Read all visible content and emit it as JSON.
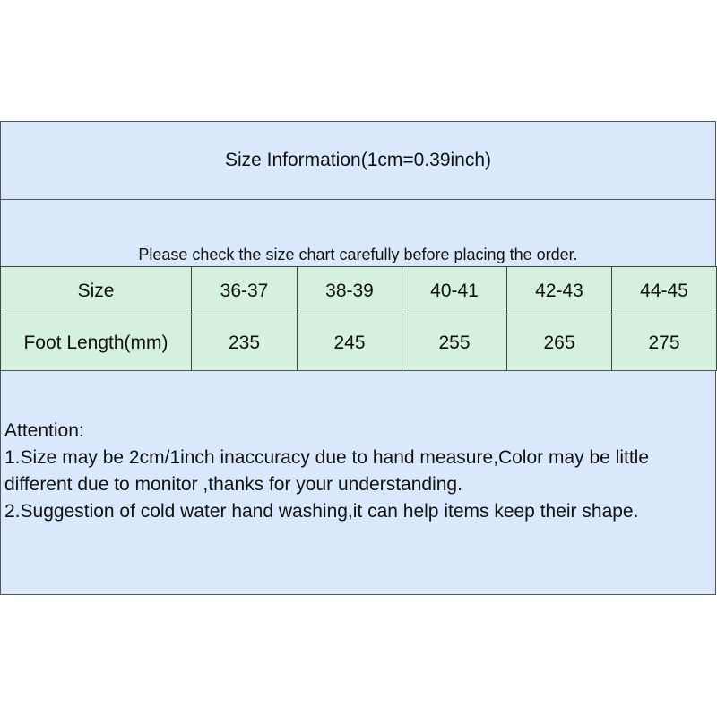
{
  "title": "Size Information(1cm=0.39inch)",
  "notice": "Please check the size chart carefully before placing the order.",
  "table": {
    "size_label": "Size",
    "length_label": "Foot Length(mm)",
    "sizes": [
      "36-37",
      "38-39",
      "40-41",
      "42-43",
      "44-45"
    ],
    "lengths": [
      "235",
      "245",
      "255",
      "265",
      "275"
    ]
  },
  "attention": {
    "heading": "Attention:",
    "line1": "1.Size may be 2cm/1inch inaccuracy due to hand measure,Color may be little different due to monitor ,thanks for your understanding.",
    "line2": "2.Suggestion of cold water hand washing,it can help items keep their shape."
  },
  "colors": {
    "blue": "#dae8fc",
    "green": "#d5f0dc"
  }
}
